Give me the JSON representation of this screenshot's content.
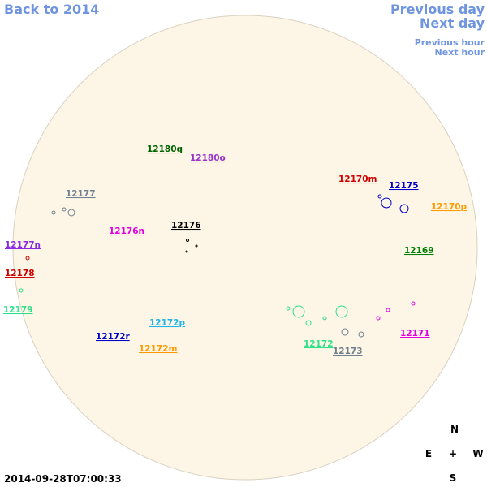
{
  "nav": {
    "back": "Back to 2014",
    "previous_day": "Previous day",
    "next_day": "Next day",
    "previous_hour": "Previous hour",
    "next_hour": "Next hour"
  },
  "regions": [
    "12180q",
    "12180o",
    "12177",
    "12176n",
    "12176",
    "12170m",
    "12175",
    "12170p",
    "12169",
    "12177n",
    "12178",
    "12179",
    "12172p",
    "12172r",
    "12172m",
    "12172",
    "12173",
    "12171"
  ],
  "timestamp": "2014-09-28T07:00:33",
  "compass": {
    "north": "N",
    "east": "E",
    "center": "+",
    "west": "W",
    "south": "S"
  }
}
